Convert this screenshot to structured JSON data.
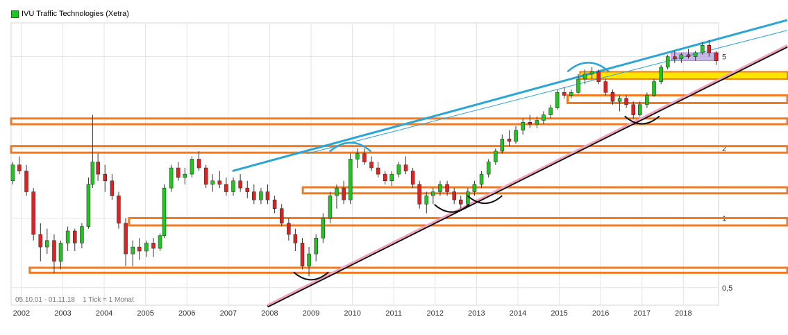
{
  "chart_data": {
    "type": "candlestick",
    "title": "IVU Traffic Technologies (Xetra)",
    "legend": {
      "label": "IVU Traffic Technologies (Xetra)",
      "placement": "top-left",
      "color": "#22c422"
    },
    "footer": {
      "range": "05.10.01 - 01.11.18",
      "tick": "1 Tick = 1 Monat"
    },
    "y_axis": {
      "scale": "log",
      "tick_labels": [
        "5",
        "2",
        "1",
        "0,5"
      ],
      "tick_values": [
        5,
        2,
        1,
        0.5
      ],
      "position": "right"
    },
    "x_axis": {
      "tick_labels": [
        "2002",
        "2003",
        "2004",
        "2005",
        "2006",
        "2007",
        "2008",
        "2009",
        "2010",
        "2011",
        "2012",
        "2013",
        "2014",
        "2015",
        "2016",
        "2017",
        "2018"
      ],
      "range": [
        2001.75,
        2018.85
      ]
    },
    "grid": true,
    "colors": {
      "up": "#22c422",
      "down": "#dd2222",
      "wick": "#333333",
      "trend_blue": "#2aa6d6",
      "trend_pink": "#f2a0c0",
      "zone_orange": "#f47a20",
      "zone_yellow": "#ffe600",
      "zone_purple": "#b9a8e0"
    },
    "series": [
      {
        "name": "IVU Traffic Technologies (Xetra)",
        "kind": "ohlc",
        "points": [
          [
            2001.79,
            1.45,
            1.75,
            1.4,
            1.7
          ],
          [
            2001.95,
            1.7,
            1.85,
            1.55,
            1.6
          ],
          [
            2002.12,
            1.6,
            1.7,
            1.25,
            1.3
          ],
          [
            2002.29,
            1.3,
            1.35,
            0.8,
            0.85
          ],
          [
            2002.46,
            0.85,
            0.95,
            0.65,
            0.75
          ],
          [
            2002.62,
            0.75,
            0.9,
            0.7,
            0.8
          ],
          [
            2002.79,
            0.8,
            0.85,
            0.58,
            0.65
          ],
          [
            2002.95,
            0.65,
            0.8,
            0.6,
            0.78
          ],
          [
            2003.12,
            0.78,
            0.92,
            0.72,
            0.88
          ],
          [
            2003.29,
            0.88,
            0.9,
            0.72,
            0.78
          ],
          [
            2003.46,
            0.78,
            0.95,
            0.74,
            0.92
          ],
          [
            2003.62,
            0.92,
            1.5,
            0.9,
            1.4
          ],
          [
            2003.72,
            1.4,
            2.8,
            1.35,
            1.75
          ],
          [
            2003.85,
            1.75,
            1.9,
            1.45,
            1.55
          ],
          [
            2004.02,
            1.55,
            1.7,
            1.3,
            1.45
          ],
          [
            2004.19,
            1.45,
            1.55,
            1.2,
            1.25
          ],
          [
            2004.35,
            1.25,
            1.3,
            0.9,
            0.95
          ],
          [
            2004.52,
            0.95,
            1.0,
            0.62,
            0.7
          ],
          [
            2004.69,
            0.7,
            0.8,
            0.62,
            0.75
          ],
          [
            2004.85,
            0.75,
            0.82,
            0.66,
            0.72
          ],
          [
            2005.02,
            0.72,
            0.8,
            0.68,
            0.78
          ],
          [
            2005.19,
            0.78,
            0.82,
            0.68,
            0.74
          ],
          [
            2005.35,
            0.74,
            0.86,
            0.72,
            0.84
          ],
          [
            2005.45,
            0.84,
            1.4,
            0.82,
            1.35
          ],
          [
            2005.62,
            1.35,
            1.7,
            1.3,
            1.65
          ],
          [
            2005.79,
            1.65,
            1.75,
            1.45,
            1.5
          ],
          [
            2005.95,
            1.5,
            1.65,
            1.4,
            1.55
          ],
          [
            2006.12,
            1.55,
            1.85,
            1.5,
            1.8
          ],
          [
            2006.29,
            1.8,
            1.95,
            1.6,
            1.65
          ],
          [
            2006.46,
            1.65,
            1.7,
            1.35,
            1.4
          ],
          [
            2006.62,
            1.4,
            1.55,
            1.3,
            1.45
          ],
          [
            2006.79,
            1.45,
            1.6,
            1.35,
            1.4
          ],
          [
            2006.95,
            1.4,
            1.5,
            1.25,
            1.3
          ],
          [
            2007.12,
            1.3,
            1.5,
            1.25,
            1.45
          ],
          [
            2007.29,
            1.45,
            1.55,
            1.3,
            1.35
          ],
          [
            2007.46,
            1.35,
            1.45,
            1.22,
            1.3
          ],
          [
            2007.62,
            1.3,
            1.4,
            1.15,
            1.2
          ],
          [
            2007.79,
            1.2,
            1.35,
            1.15,
            1.3
          ],
          [
            2007.95,
            1.3,
            1.4,
            1.15,
            1.2
          ],
          [
            2008.12,
            1.2,
            1.25,
            1.05,
            1.1
          ],
          [
            2008.29,
            1.1,
            1.15,
            0.92,
            0.95
          ],
          [
            2008.46,
            0.95,
            1.0,
            0.8,
            0.85
          ],
          [
            2008.62,
            0.85,
            0.9,
            0.72,
            0.78
          ],
          [
            2008.79,
            0.78,
            0.82,
            0.6,
            0.62
          ],
          [
            2008.95,
            0.62,
            0.75,
            0.56,
            0.7
          ],
          [
            2009.12,
            0.7,
            0.85,
            0.65,
            0.82
          ],
          [
            2009.29,
            0.82,
            1.05,
            0.78,
            1.0
          ],
          [
            2009.46,
            1.0,
            1.3,
            0.95,
            1.25
          ],
          [
            2009.62,
            1.25,
            1.4,
            1.1,
            1.35
          ],
          [
            2009.79,
            1.35,
            1.45,
            1.15,
            1.2
          ],
          [
            2009.95,
            1.2,
            1.9,
            1.15,
            1.8
          ],
          [
            2010.12,
            1.8,
            2.0,
            1.65,
            1.9
          ],
          [
            2010.29,
            1.9,
            2.0,
            1.7,
            1.75
          ],
          [
            2010.46,
            1.75,
            1.85,
            1.6,
            1.65
          ],
          [
            2010.62,
            1.65,
            1.75,
            1.5,
            1.55
          ],
          [
            2010.79,
            1.55,
            1.6,
            1.4,
            1.45
          ],
          [
            2010.95,
            1.45,
            1.6,
            1.38,
            1.55
          ],
          [
            2011.12,
            1.55,
            1.75,
            1.5,
            1.7
          ],
          [
            2011.29,
            1.7,
            1.85,
            1.55,
            1.6
          ],
          [
            2011.46,
            1.6,
            1.65,
            1.35,
            1.4
          ],
          [
            2011.62,
            1.4,
            1.45,
            1.1,
            1.15
          ],
          [
            2011.79,
            1.15,
            1.3,
            1.05,
            1.25
          ],
          [
            2011.95,
            1.25,
            1.35,
            1.15,
            1.3
          ],
          [
            2012.12,
            1.3,
            1.45,
            1.25,
            1.4
          ],
          [
            2012.29,
            1.4,
            1.45,
            1.25,
            1.3
          ],
          [
            2012.46,
            1.3,
            1.35,
            1.15,
            1.2
          ],
          [
            2012.62,
            1.2,
            1.25,
            1.1,
            1.15
          ],
          [
            2012.79,
            1.15,
            1.35,
            1.12,
            1.3
          ],
          [
            2012.95,
            1.3,
            1.45,
            1.25,
            1.4
          ],
          [
            2013.12,
            1.4,
            1.6,
            1.35,
            1.55
          ],
          [
            2013.29,
            1.55,
            1.8,
            1.5,
            1.75
          ],
          [
            2013.46,
            1.75,
            2.0,
            1.7,
            1.95
          ],
          [
            2013.62,
            1.95,
            2.3,
            1.9,
            2.2
          ],
          [
            2013.79,
            2.2,
            2.4,
            2.05,
            2.15
          ],
          [
            2013.95,
            2.15,
            2.5,
            2.1,
            2.4
          ],
          [
            2014.12,
            2.4,
            2.7,
            2.3,
            2.6
          ],
          [
            2014.29,
            2.6,
            2.8,
            2.45,
            2.55
          ],
          [
            2014.46,
            2.55,
            2.75,
            2.45,
            2.65
          ],
          [
            2014.62,
            2.65,
            2.9,
            2.55,
            2.8
          ],
          [
            2014.79,
            2.8,
            3.1,
            2.7,
            3.0
          ],
          [
            2014.95,
            3.0,
            3.6,
            2.95,
            3.5
          ],
          [
            2015.12,
            3.5,
            3.7,
            3.3,
            3.4
          ],
          [
            2015.29,
            3.4,
            3.6,
            3.3,
            3.5
          ],
          [
            2015.46,
            3.5,
            4.2,
            3.45,
            4.0
          ],
          [
            2015.62,
            4.0,
            4.4,
            3.8,
            4.2
          ],
          [
            2015.79,
            4.2,
            4.5,
            4.0,
            4.3
          ],
          [
            2015.95,
            4.3,
            4.4,
            3.8,
            3.9
          ],
          [
            2016.12,
            3.9,
            4.0,
            3.4,
            3.5
          ],
          [
            2016.29,
            3.5,
            3.6,
            3.1,
            3.2
          ],
          [
            2016.46,
            3.2,
            3.4,
            2.9,
            3.3
          ],
          [
            2016.62,
            3.3,
            3.4,
            3.0,
            3.1
          ],
          [
            2016.79,
            3.1,
            3.2,
            2.7,
            2.8
          ],
          [
            2016.95,
            2.8,
            3.2,
            2.75,
            3.1
          ],
          [
            2017.12,
            3.1,
            3.5,
            3.0,
            3.4
          ],
          [
            2017.29,
            3.4,
            4.0,
            3.35,
            3.9
          ],
          [
            2017.46,
            3.9,
            4.6,
            3.8,
            4.5
          ],
          [
            2017.62,
            4.5,
            5.1,
            4.4,
            5.0
          ],
          [
            2017.79,
            5.0,
            5.3,
            4.7,
            4.9
          ],
          [
            2017.95,
            4.9,
            5.2,
            4.7,
            5.1
          ],
          [
            2018.12,
            5.1,
            5.4,
            4.9,
            5.0
          ],
          [
            2018.29,
            5.0,
            5.3,
            4.8,
            5.2
          ],
          [
            2018.46,
            5.2,
            5.8,
            5.1,
            5.6
          ],
          [
            2018.62,
            5.6,
            5.9,
            5.0,
            5.2
          ],
          [
            2018.79,
            5.2,
            5.3,
            4.6,
            4.8
          ]
        ]
      }
    ],
    "annotations": {
      "zones": [
        {
          "color": "orange",
          "x0": 2001.75,
          "x1": 2018.85,
          "y0": 2.55,
          "y1": 2.7
        },
        {
          "color": "orange",
          "x0": 2001.75,
          "x1": 2018.85,
          "y0": 1.92,
          "y1": 2.05
        },
        {
          "color": "orange",
          "x0": 2008.8,
          "x1": 2018.85,
          "y0": 1.28,
          "y1": 1.36
        },
        {
          "color": "orange",
          "x0": 2004.6,
          "x1": 2018.85,
          "y0": 0.93,
          "y1": 1.0
        },
        {
          "color": "orange",
          "x0": 2002.2,
          "x1": 2018.85,
          "y0": 0.58,
          "y1": 0.61
        },
        {
          "color": "orange",
          "x0": 2015.2,
          "x1": 2018.85,
          "y0": 3.15,
          "y1": 3.4
        },
        {
          "color": "yellow",
          "x0": 2015.5,
          "x1": 2018.85,
          "y0": 4.0,
          "y1": 4.3
        },
        {
          "color": "purple",
          "x0": 2017.7,
          "x1": 2018.85,
          "y0": 4.8,
          "y1": 5.2
        }
      ],
      "trendlines": [
        {
          "color": "blue",
          "x0": 2007.1,
          "y0": 1.6,
          "x1": 2018.85,
          "y1": 7.2
        },
        {
          "color": "blue-thin",
          "x0": 2008.9,
          "y0": 1.9,
          "x1": 2018.85,
          "y1": 6.5
        },
        {
          "color": "pink",
          "x0": 2007.95,
          "y0": 0.42,
          "x1": 2018.85,
          "y1": 5.6
        }
      ]
    }
  }
}
